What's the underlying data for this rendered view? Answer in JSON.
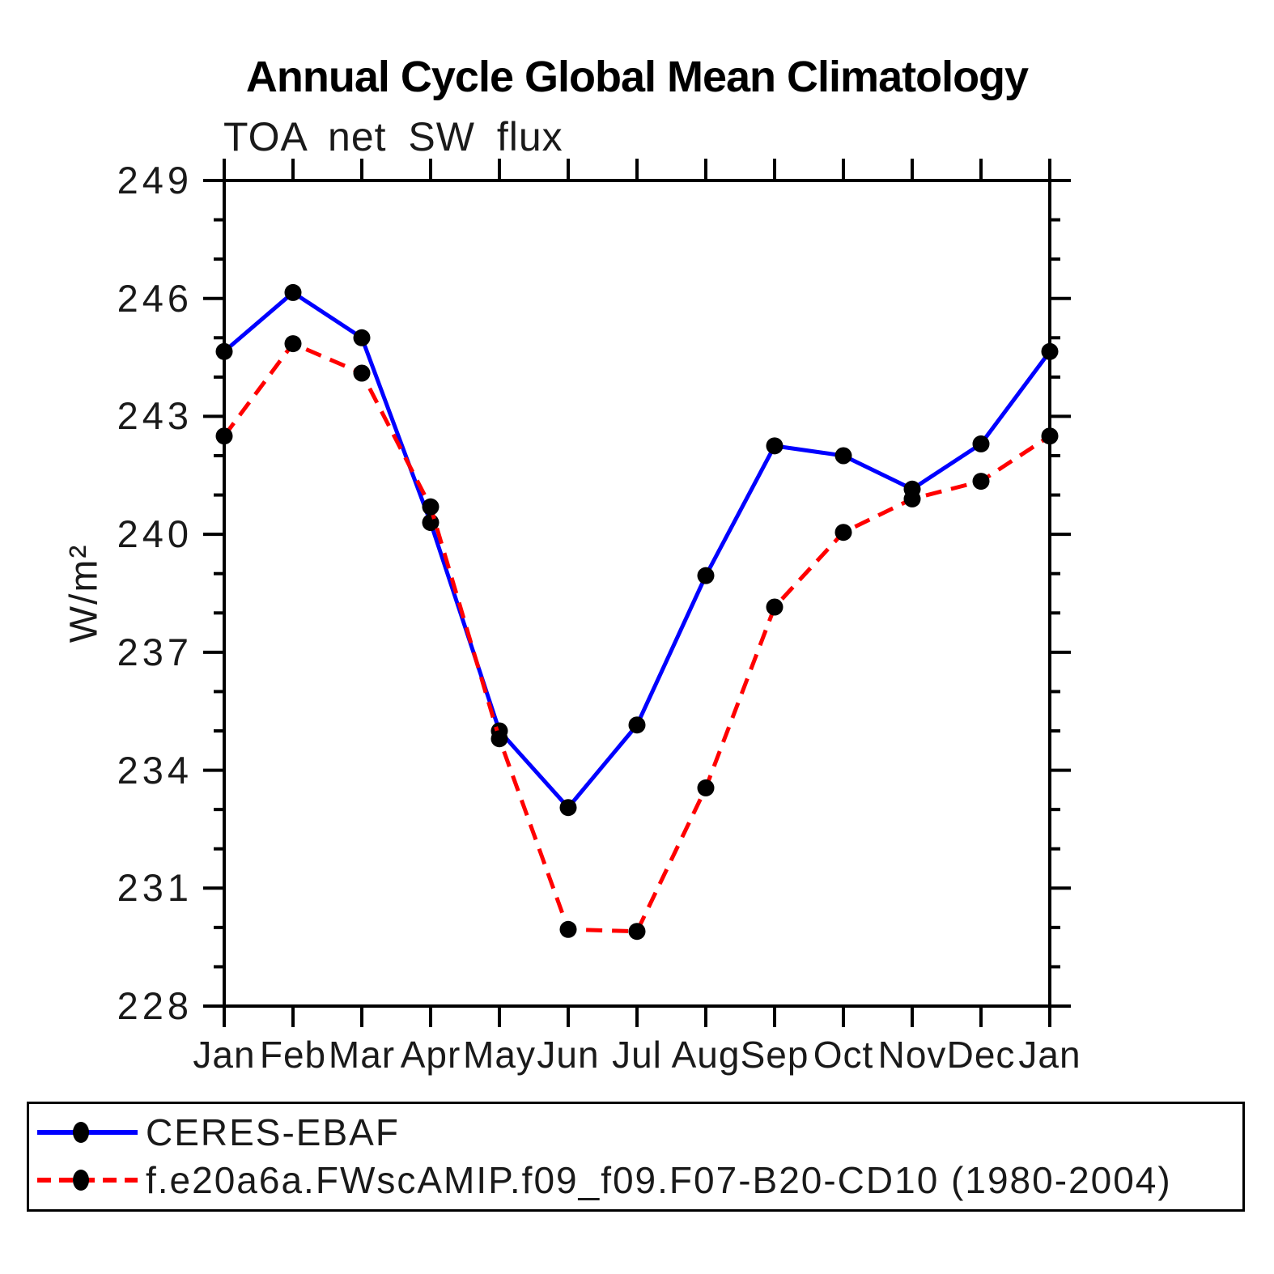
{
  "title": "Annual Cycle Global Mean Climatology",
  "subtitle": "TOA net SW flux",
  "ylabel": "W/m²",
  "colors": {
    "background": "#ffffff",
    "axis": "#000000",
    "ceres_line": "#0000ff",
    "model_line": "#ff0000",
    "marker": "#000000"
  },
  "chart_data": {
    "type": "line",
    "title": "Annual Cycle Global Mean Climatology",
    "subtitle": "TOA net SW flux",
    "xlabel": "",
    "ylabel": "W/m²",
    "x_categories": [
      "Jan",
      "Feb",
      "Mar",
      "Apr",
      "May",
      "Jun",
      "Jul",
      "Aug",
      "Sep",
      "Oct",
      "Nov",
      "Dec",
      "Jan"
    ],
    "ylim": [
      228,
      249
    ],
    "ytick_step_major": 3,
    "ytick_step_minor": 1,
    "ytick_labels": [
      228,
      231,
      234,
      237,
      240,
      243,
      246,
      249
    ],
    "grid": false,
    "legend_position": "bottom-left-box",
    "series": [
      {
        "name": "CERES-EBAF",
        "color": "#0000ff",
        "style": "solid",
        "marker": "black-dot",
        "values": [
          244.65,
          246.15,
          245.0,
          240.3,
          235.0,
          233.05,
          235.15,
          238.95,
          242.25,
          242.0,
          241.15,
          242.3,
          244.65
        ]
      },
      {
        "name": "f.e20a6a.FWscAMIP.f09_f09.F07-B20-CD10 (1980-2004)",
        "color": "#ff0000",
        "style": "dashed",
        "marker": "black-dot",
        "values": [
          242.5,
          244.85,
          244.1,
          240.7,
          234.8,
          229.95,
          229.9,
          233.55,
          238.15,
          240.05,
          240.9,
          241.35,
          242.5
        ]
      }
    ]
  }
}
